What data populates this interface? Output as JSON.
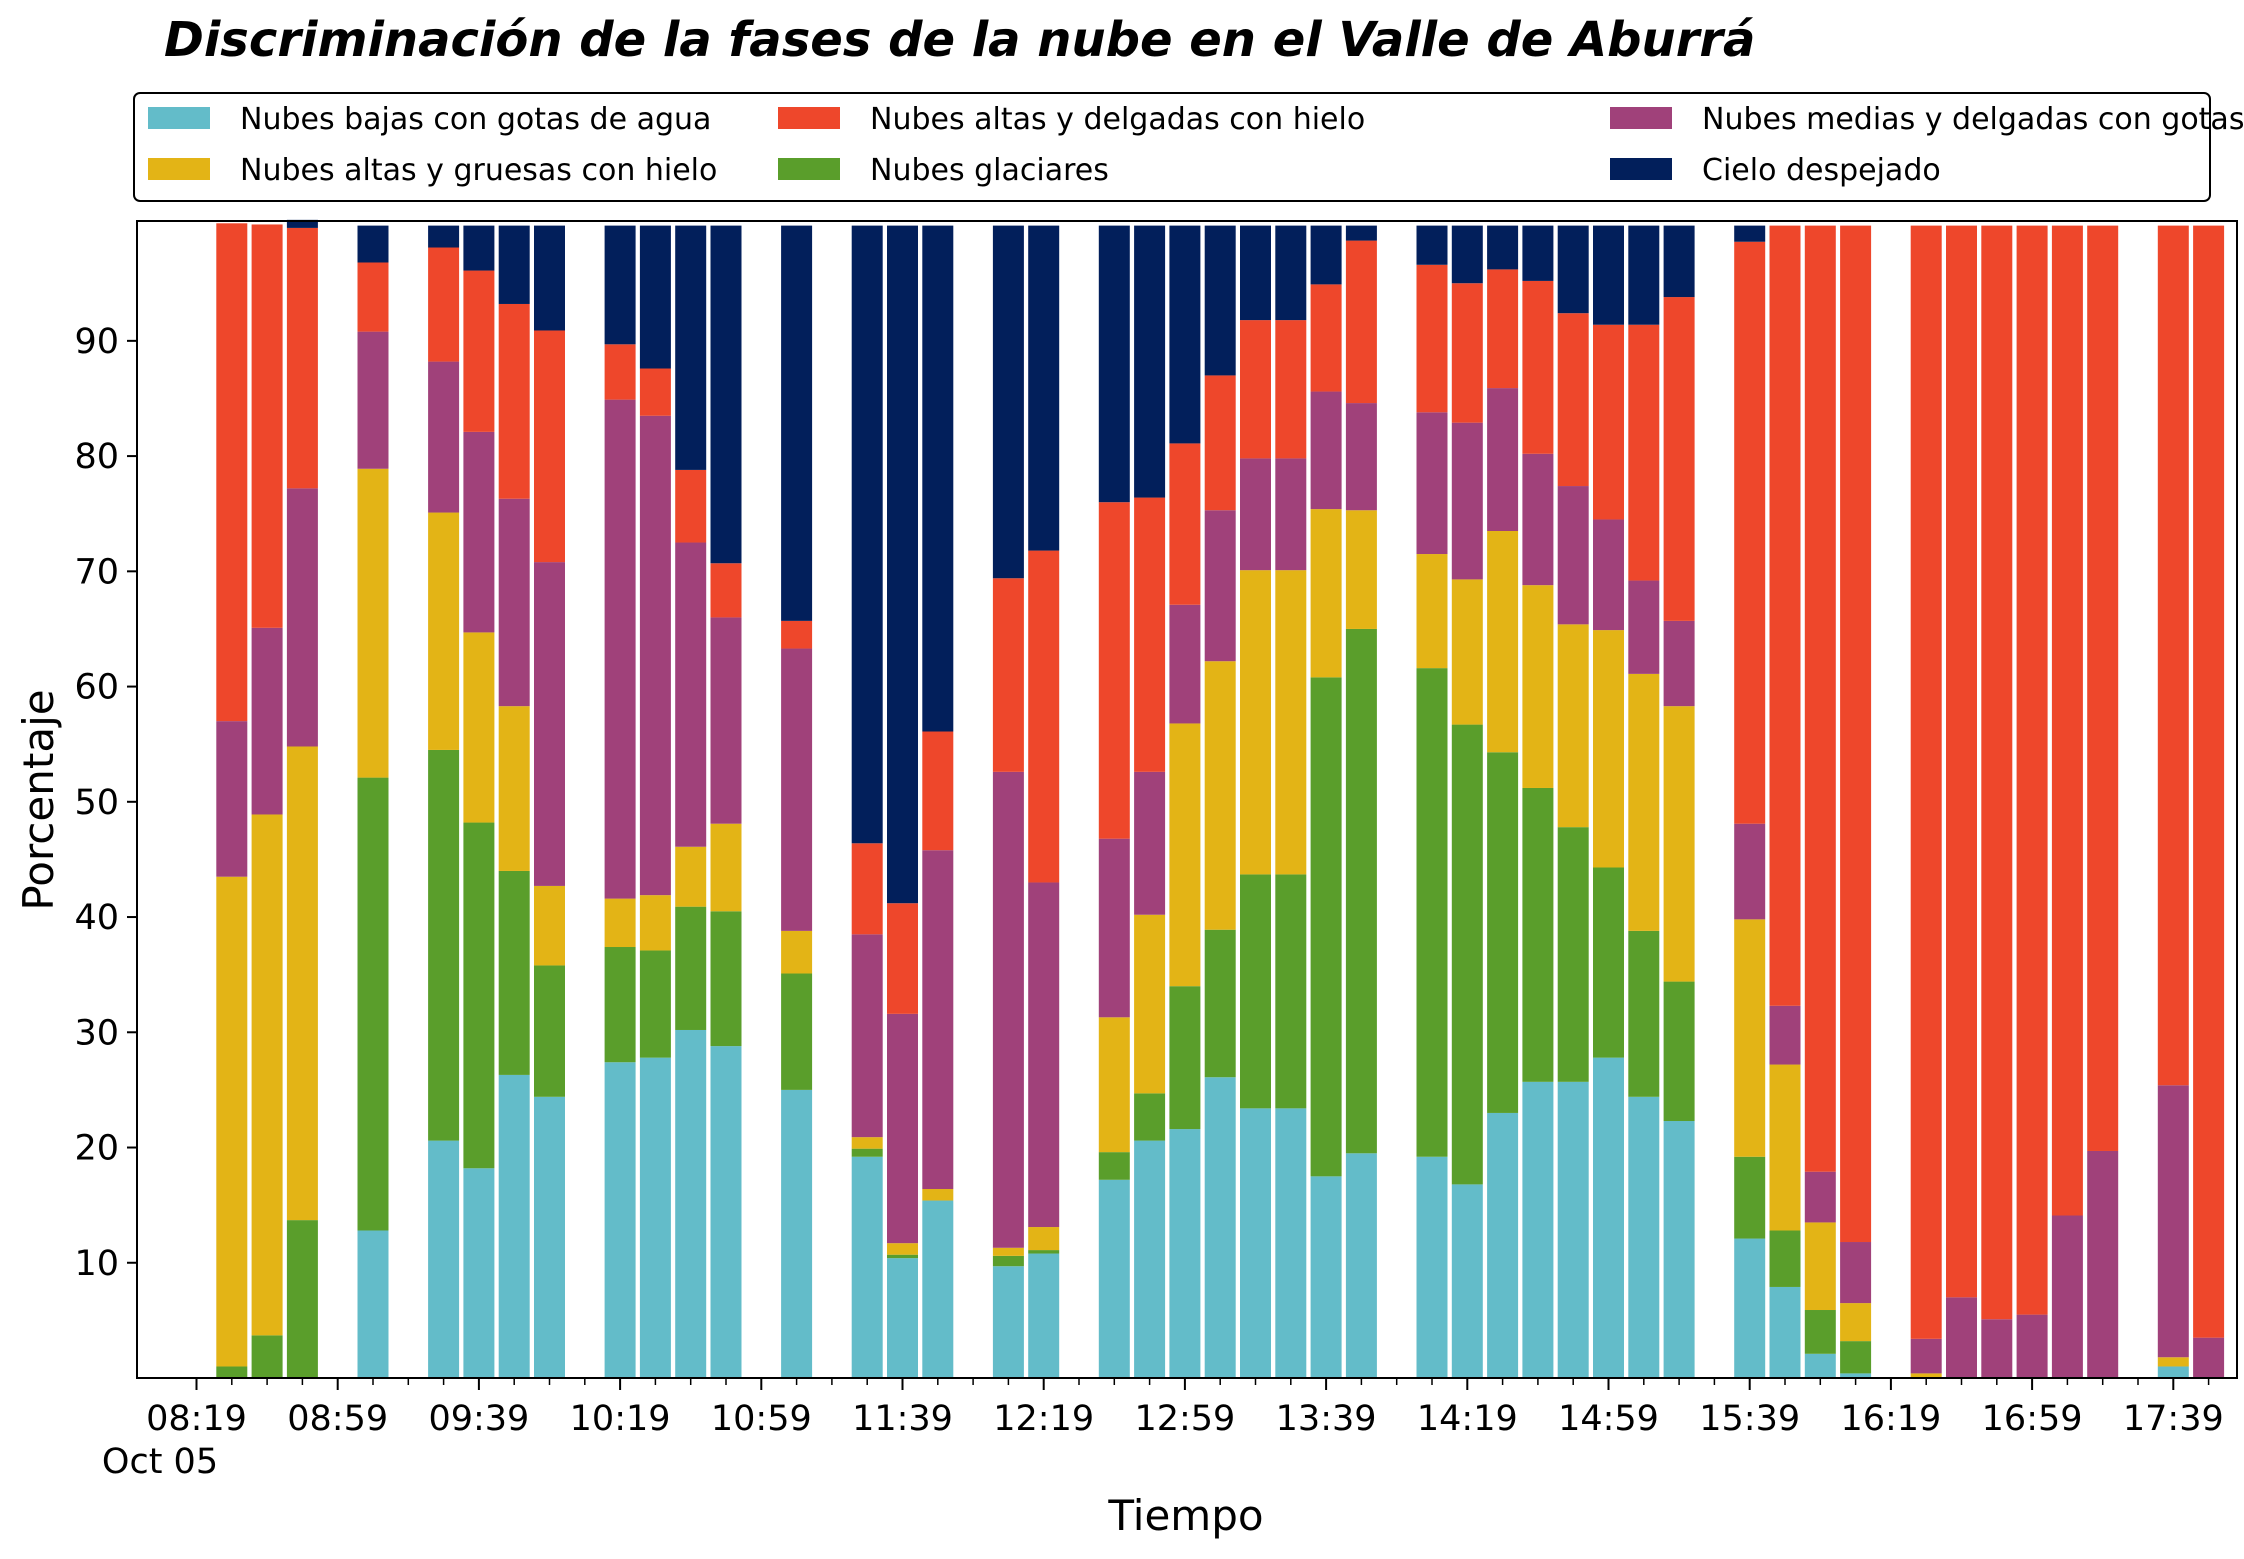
{
  "chart_data": {
    "type": "bar",
    "stacked": true,
    "title": "Discriminación de la fases de la nube en el Valle de Aburrá",
    "xlabel": "Tiempo",
    "ylabel": "Porcentaje",
    "ylim": [
      0,
      100
    ],
    "yticks": [
      10,
      20,
      30,
      40,
      50,
      60,
      70,
      80,
      90
    ],
    "xticks": [
      "08:19",
      "08:59",
      "09:39",
      "10:19",
      "10:59",
      "11:39",
      "12:19",
      "12:59",
      "13:39",
      "14:19",
      "14:59",
      "15:39",
      "16:19",
      "16:59",
      "17:39"
    ],
    "x_date_label": "Oct 05",
    "legend_position": "top",
    "series": [
      {
        "name": "Nubes bajas con gotas de agua",
        "color": "#63bcc9"
      },
      {
        "name": "Nubes glaciares",
        "color": "#5a9e2b"
      },
      {
        "name": "Nubes altas y gruesas con hielo",
        "color": "#e3b416"
      },
      {
        "name": "Nubes medias y delgadas con gotas de agua",
        "color": "#a0417a"
      },
      {
        "name": "Nubes altas y delgadas con hielo",
        "color": "#ee472b"
      },
      {
        "name": "Cielo despejado",
        "color": "#021f5b"
      }
    ],
    "legend_order": [
      0,
      2,
      4,
      1,
      3,
      5
    ],
    "bars": [
      {
        "slot": 1,
        "values": [
          0,
          1,
          42.5,
          13.5,
          43.2,
          0
        ]
      },
      {
        "slot": 2,
        "values": [
          0,
          3.7,
          45.2,
          16.2,
          35,
          0
        ]
      },
      {
        "slot": 3,
        "values": [
          0,
          13.7,
          41.1,
          22.4,
          22.6,
          0.7
        ]
      },
      {
        "slot": 5,
        "values": [
          12.8,
          39.3,
          26.8,
          11.9,
          6,
          3.2
        ]
      },
      {
        "slot": 7,
        "values": [
          20.6,
          33.9,
          20.6,
          13.1,
          9.9,
          1.9
        ]
      },
      {
        "slot": 8,
        "values": [
          18.2,
          30,
          16.5,
          17.4,
          14,
          3.9
        ]
      },
      {
        "slot": 9,
        "values": [
          26.3,
          17.7,
          14.3,
          18,
          16.9,
          6.8
        ]
      },
      {
        "slot": 10,
        "values": [
          24.4,
          11.4,
          6.9,
          28.1,
          20.1,
          9.1
        ]
      },
      {
        "slot": 12,
        "values": [
          27.4,
          10,
          4.2,
          43.3,
          4.8,
          10.3
        ]
      },
      {
        "slot": 13,
        "values": [
          27.8,
          9.3,
          4.8,
          41.6,
          4.1,
          12.4
        ]
      },
      {
        "slot": 14,
        "values": [
          30.2,
          10.7,
          5.2,
          26.4,
          6.3,
          21.2
        ]
      },
      {
        "slot": 15,
        "values": [
          28.8,
          11.7,
          7.6,
          17.9,
          4.7,
          29.3
        ]
      },
      {
        "slot": 17,
        "values": [
          25,
          10.1,
          3.7,
          24.5,
          2.4,
          34.3
        ]
      },
      {
        "slot": 19,
        "values": [
          19.2,
          0.7,
          1,
          17.6,
          7.9,
          53.6
        ]
      },
      {
        "slot": 20,
        "values": [
          10.4,
          0.3,
          1,
          19.9,
          9.6,
          58.8
        ]
      },
      {
        "slot": 21,
        "values": [
          15.4,
          0,
          1,
          29.4,
          10.3,
          43.9
        ]
      },
      {
        "slot": 23,
        "values": [
          9.7,
          0.9,
          0.7,
          41.3,
          16.8,
          30.6
        ]
      },
      {
        "slot": 24,
        "values": [
          10.8,
          0.3,
          2,
          29.9,
          28.8,
          28.2
        ]
      },
      {
        "slot": 26,
        "values": [
          17.2,
          2.4,
          11.7,
          15.5,
          29.2,
          24
        ]
      },
      {
        "slot": 27,
        "values": [
          20.6,
          4.1,
          15.5,
          12.4,
          23.8,
          23.6
        ]
      },
      {
        "slot": 28,
        "values": [
          21.6,
          12.4,
          22.8,
          10.3,
          14,
          18.9
        ]
      },
      {
        "slot": 29,
        "values": [
          26.1,
          12.8,
          23.3,
          13.1,
          11.7,
          13
        ]
      },
      {
        "slot": 30,
        "values": [
          23.4,
          20.3,
          26.4,
          9.7,
          12,
          8.2
        ]
      },
      {
        "slot": 31,
        "values": [
          23.4,
          20.3,
          26.4,
          9.7,
          12,
          8.2
        ]
      },
      {
        "slot": 32,
        "values": [
          17.5,
          43.3,
          14.6,
          10.2,
          9.3,
          5.1
        ]
      },
      {
        "slot": 33,
        "values": [
          19.5,
          45.5,
          10.3,
          9.3,
          14.1,
          1.3
        ]
      },
      {
        "slot": 35,
        "values": [
          19.2,
          42.4,
          9.9,
          12.3,
          12.8,
          3.4
        ]
      },
      {
        "slot": 36,
        "values": [
          16.8,
          39.9,
          12.6,
          13.6,
          12.1,
          5
        ]
      },
      {
        "slot": 37,
        "values": [
          23,
          31.3,
          19.2,
          12.4,
          10.3,
          3.8
        ]
      },
      {
        "slot": 38,
        "values": [
          25.7,
          25.5,
          17.6,
          11.4,
          15,
          4.8
        ]
      },
      {
        "slot": 39,
        "values": [
          25.7,
          22.1,
          17.6,
          12,
          15,
          7.6
        ]
      },
      {
        "slot": 40,
        "values": [
          27.8,
          16.5,
          20.6,
          9.6,
          16.9,
          8.6
        ]
      },
      {
        "slot": 41,
        "values": [
          24.4,
          14.4,
          22.3,
          8.1,
          22.2,
          8.6
        ]
      },
      {
        "slot": 42,
        "values": [
          22.3,
          12.1,
          23.9,
          7.4,
          28.1,
          6.2
        ]
      },
      {
        "slot": 44,
        "values": [
          12.1,
          7.1,
          20.6,
          8.3,
          50.5,
          1.4
        ]
      },
      {
        "slot": 45,
        "values": [
          7.9,
          4.9,
          14.4,
          5.1,
          67.7,
          0
        ]
      },
      {
        "slot": 46,
        "values": [
          2.1,
          3.8,
          7.6,
          4.4,
          82.1,
          0
        ]
      },
      {
        "slot": 47,
        "values": [
          0.4,
          2.8,
          3.3,
          5.3,
          88.2,
          0
        ]
      },
      {
        "slot": 49,
        "values": [
          0,
          0,
          0.4,
          3,
          96.6,
          0
        ]
      },
      {
        "slot": 50,
        "values": [
          0,
          0,
          0,
          7,
          93,
          0
        ]
      },
      {
        "slot": 51,
        "values": [
          0,
          0,
          0,
          5.1,
          94.9,
          0
        ]
      },
      {
        "slot": 52,
        "values": [
          0,
          0,
          0,
          5.5,
          94.5,
          0
        ]
      },
      {
        "slot": 53,
        "values": [
          0,
          0,
          0,
          14.1,
          85.9,
          0
        ]
      },
      {
        "slot": 54,
        "values": [
          0,
          0,
          0,
          19.7,
          80.3,
          0
        ]
      },
      {
        "slot": 56,
        "values": [
          1,
          0,
          0.8,
          23.6,
          74.6,
          0
        ]
      },
      {
        "slot": 57,
        "values": [
          0,
          0,
          0,
          3.5,
          96.5,
          0
        ]
      }
    ]
  }
}
